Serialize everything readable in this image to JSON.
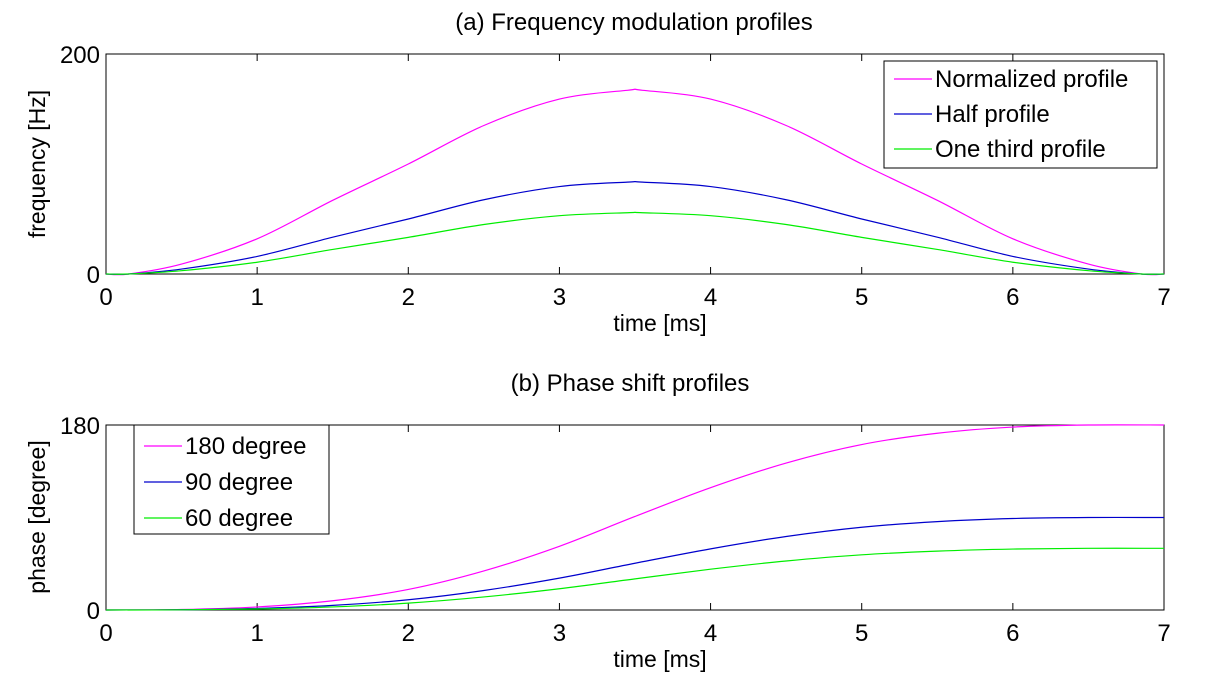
{
  "chart_data": [
    {
      "type": "line",
      "title": "(a) Frequency modulation profiles",
      "xlabel": "time [ms]",
      "ylabel": "frequency [Hz]",
      "xlim": [
        0,
        7
      ],
      "ylim": [
        0,
        200
      ],
      "xticks": [
        "0",
        "1",
        "2",
        "3",
        "4",
        "5",
        "6",
        "7"
      ],
      "yticks": [
        "0",
        "200"
      ],
      "legend_position": "top-right",
      "grid": false,
      "series": [
        {
          "name": "Normalized profile",
          "color": "#ff00ff",
          "x": [
            0,
            0.15,
            0.5,
            1,
            1.5,
            2,
            2.5,
            3,
            3.45,
            3.55,
            4,
            4.5,
            5,
            5.5,
            6,
            6.5,
            6.85,
            7
          ],
          "y": [
            0,
            0,
            9,
            32,
            67,
            100,
            135,
            159,
            167,
            167,
            159,
            135,
            100,
            67,
            32,
            9,
            0,
            0
          ]
        },
        {
          "name": "Half profile",
          "color": "#0000cc",
          "x": [
            0,
            0.15,
            0.5,
            1,
            1.5,
            2,
            2.5,
            3,
            3.45,
            3.55,
            4,
            4.5,
            5,
            5.5,
            6,
            6.5,
            6.85,
            7
          ],
          "y": [
            0,
            0,
            4.5,
            16,
            33.5,
            50,
            67.5,
            79.5,
            83.5,
            83.5,
            79.5,
            67.5,
            50,
            33.5,
            16,
            4.5,
            0,
            0
          ]
        },
        {
          "name": "One third profile",
          "color": "#00ee00",
          "x": [
            0,
            0.15,
            0.5,
            1,
            1.5,
            2,
            2.5,
            3,
            3.45,
            3.55,
            4,
            4.5,
            5,
            5.5,
            6,
            6.5,
            6.85,
            7
          ],
          "y": [
            0,
            0,
            3,
            10.7,
            22.3,
            33.3,
            45,
            53,
            55.7,
            55.7,
            53,
            45,
            33.3,
            22.3,
            10.7,
            3,
            0,
            0
          ]
        }
      ]
    },
    {
      "type": "line",
      "title": "(b) Phase shift profiles",
      "xlabel": "time [ms]",
      "ylabel": "phase [degree]",
      "xlim": [
        0,
        7
      ],
      "ylim": [
        0,
        180
      ],
      "xticks": [
        "0",
        "1",
        "2",
        "3",
        "4",
        "5",
        "6",
        "7"
      ],
      "yticks": [
        "0",
        "180"
      ],
      "legend_position": "top-left",
      "grid": false,
      "series": [
        {
          "name": "180 degree",
          "color": "#ff00ff",
          "x": [
            0,
            0.5,
            1,
            1.5,
            2,
            2.5,
            3,
            3.5,
            4,
            4.5,
            5,
            5.5,
            6,
            6.5,
            7
          ],
          "y": [
            0,
            0.5,
            3,
            9,
            20,
            38,
            62,
            91,
            119,
            143,
            161,
            172,
            178,
            180,
            180
          ]
        },
        {
          "name": "90 degree",
          "color": "#0000cc",
          "x": [
            0,
            0.5,
            1,
            1.5,
            2,
            2.5,
            3,
            3.5,
            4,
            4.5,
            5,
            5.5,
            6,
            6.5,
            7
          ],
          "y": [
            0,
            0.25,
            1.5,
            4.5,
            10,
            19,
            31,
            45.5,
            59.5,
            71.5,
            80.5,
            86,
            89,
            90,
            90
          ]
        },
        {
          "name": "60 degree",
          "color": "#00ee00",
          "x": [
            0,
            0.5,
            1,
            1.5,
            2,
            2.5,
            3,
            3.5,
            4,
            4.5,
            5,
            5.5,
            6,
            6.5,
            7
          ],
          "y": [
            0,
            0.2,
            1,
            3,
            6.7,
            12.7,
            20.7,
            30.3,
            39.7,
            47.7,
            53.7,
            57.3,
            59.3,
            60,
            60
          ]
        }
      ]
    }
  ]
}
